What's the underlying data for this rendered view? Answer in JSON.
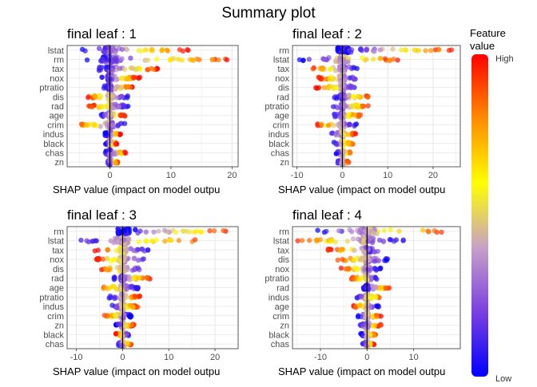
{
  "chart_data": {
    "type": "scatter",
    "title": "Summary plot",
    "legend": {
      "title_line1": "Feature",
      "title_line2": "value",
      "high_label": "High",
      "low_label": "Low",
      "colors": [
        "#0000ff",
        "#7b3fe0",
        "#c8a0c8",
        "#ffff00",
        "#ff8c00",
        "#ff0000"
      ],
      "placement": "right"
    },
    "panels": [
      {
        "title": "final leaf : 1",
        "xlabel": "SHAP value (impact on model outpu",
        "xlim": [
          -7,
          21
        ],
        "xticks": [
          0,
          10,
          20
        ],
        "features": [
          "lstat",
          "rm",
          "tax",
          "nox",
          "ptratio",
          "dis",
          "rad",
          "age",
          "crim",
          "indus",
          "black",
          "chas",
          "zn"
        ],
        "ranges": [
          [
            -4.5,
            13.5
          ],
          [
            -4.0,
            20.0
          ],
          [
            -2.0,
            8.0
          ],
          [
            -1.5,
            5.0
          ],
          [
            -1.0,
            4.0
          ],
          [
            -4.0,
            3.0
          ],
          [
            -3.5,
            3.0
          ],
          [
            -1.5,
            2.5
          ],
          [
            -6.0,
            2.5
          ],
          [
            -0.8,
            1.8
          ],
          [
            -0.8,
            1.2
          ],
          [
            -0.8,
            2.8
          ],
          [
            -0.5,
            1.5
          ]
        ]
      },
      {
        "title": "final leaf : 2",
        "xlabel": "SHAP value (impact on model outpu",
        "xlim": [
          -11,
          26
        ],
        "xticks": [
          -10,
          0,
          10,
          20
        ],
        "features": [
          "rm",
          "lstat",
          "tax",
          "nox",
          "dis",
          "rad",
          "ptratio",
          "age",
          "crim",
          "indus",
          "black",
          "chas",
          "zn"
        ],
        "ranges": [
          [
            -1.0,
            25.0
          ],
          [
            -9.5,
            13.0
          ],
          [
            -7.0,
            3.5
          ],
          [
            -6.0,
            3.5
          ],
          [
            -6.0,
            4.0
          ],
          [
            -2.0,
            6.5
          ],
          [
            -2.5,
            6.0
          ],
          [
            -2.0,
            4.0
          ],
          [
            -6.0,
            3.5
          ],
          [
            -2.5,
            3.0
          ],
          [
            -2.0,
            2.5
          ],
          [
            -1.5,
            2.0
          ],
          [
            -1.0,
            1.5
          ]
        ]
      },
      {
        "title": "final leaf : 3",
        "xlabel": "SHAP value (impact on model outpu",
        "xlim": [
          -12,
          25
        ],
        "xticks": [
          -10,
          0,
          10,
          20
        ],
        "features": [
          "rm",
          "lstat",
          "tax",
          "nox",
          "dis",
          "rad",
          "age",
          "ptratio",
          "indus",
          "crim",
          "zn",
          "black",
          "chas"
        ],
        "ranges": [
          [
            -1.0,
            24.0
          ],
          [
            -10.0,
            17.0
          ],
          [
            -6.0,
            5.5
          ],
          [
            -6.0,
            5.0
          ],
          [
            -5.0,
            4.5
          ],
          [
            -2.0,
            6.0
          ],
          [
            -5.0,
            3.5
          ],
          [
            -3.0,
            4.0
          ],
          [
            -2.5,
            3.5
          ],
          [
            -4.0,
            2.0
          ],
          [
            -1.5,
            2.5
          ],
          [
            -1.5,
            1.5
          ],
          [
            -1.0,
            2.0
          ]
        ]
      },
      {
        "title": "final leaf : 4",
        "xlabel": "SHAP value (impact on model outpu",
        "xlim": [
          -16,
          20
        ],
        "xticks": [
          -10,
          0,
          10
        ],
        "features": [
          "rm",
          "lstat",
          "tax",
          "dis",
          "nox",
          "ptratio",
          "rad",
          "indus",
          "age",
          "crim",
          "zn",
          "black",
          "chas"
        ],
        "ranges": [
          [
            -11.0,
            17.0
          ],
          [
            -15.0,
            8.0
          ],
          [
            -8.5,
            3.5
          ],
          [
            -6.5,
            4.5
          ],
          [
            -6.0,
            3.0
          ],
          [
            -3.5,
            2.5
          ],
          [
            -1.0,
            5.0
          ],
          [
            -2.5,
            3.5
          ],
          [
            -3.0,
            2.5
          ],
          [
            -2.0,
            3.0
          ],
          [
            -1.5,
            3.0
          ],
          [
            -1.5,
            2.0
          ],
          [
            -1.0,
            1.5
          ]
        ]
      }
    ]
  }
}
